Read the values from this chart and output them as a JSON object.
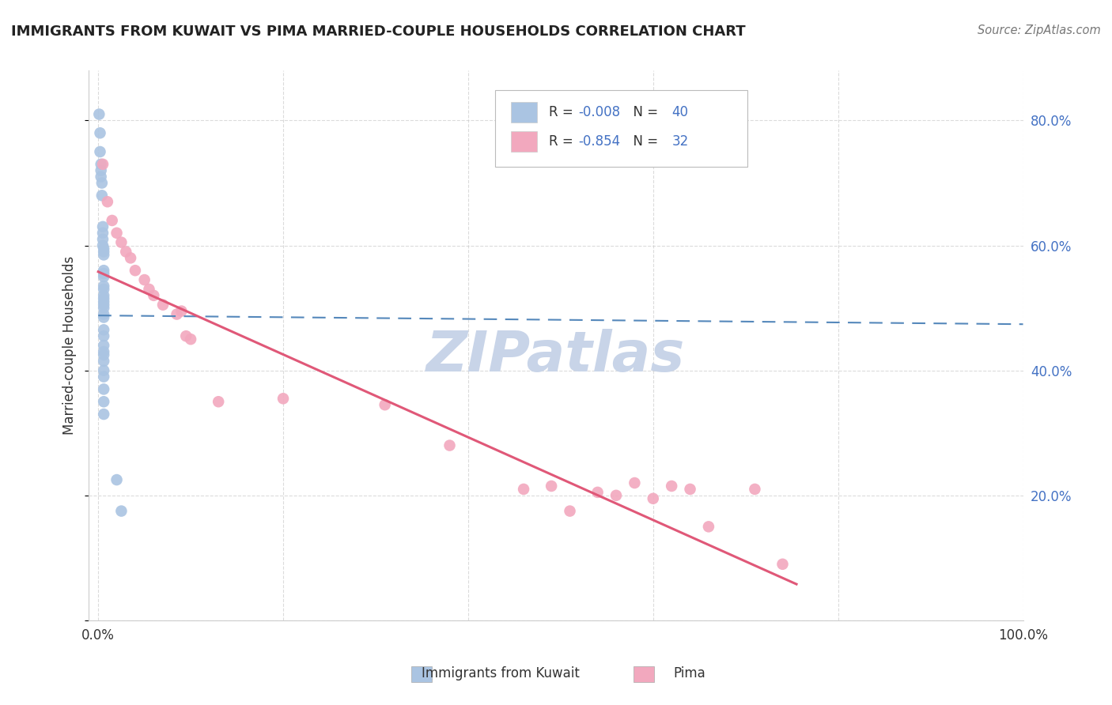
{
  "title": "IMMIGRANTS FROM KUWAIT VS PIMA MARRIED-COUPLE HOUSEHOLDS CORRELATION CHART",
  "source": "Source: ZipAtlas.com",
  "ylabel": "Married-couple Households",
  "blue_color": "#aac4e2",
  "pink_color": "#f2a8be",
  "blue_line_color": "#5588bb",
  "pink_line_color": "#e05878",
  "legend_text_blue": "#4472c4",
  "legend_text_black": "#333333",
  "watermark_color": "#c8d4e8",
  "grid_color": "#cccccc",
  "background_color": "#ffffff",
  "blue_scatter_x": [
    0.001,
    0.002,
    0.002,
    0.003,
    0.003,
    0.003,
    0.004,
    0.004,
    0.005,
    0.005,
    0.005,
    0.005,
    0.006,
    0.006,
    0.006,
    0.006,
    0.006,
    0.006,
    0.006,
    0.006,
    0.006,
    0.006,
    0.006,
    0.006,
    0.006,
    0.006,
    0.006,
    0.006,
    0.006,
    0.006,
    0.006,
    0.006,
    0.006,
    0.006,
    0.006,
    0.006,
    0.006,
    0.006,
    0.02,
    0.025
  ],
  "blue_scatter_y": [
    0.81,
    0.78,
    0.75,
    0.73,
    0.72,
    0.71,
    0.7,
    0.68,
    0.63,
    0.62,
    0.61,
    0.6,
    0.595,
    0.59,
    0.585,
    0.56,
    0.555,
    0.55,
    0.535,
    0.53,
    0.52,
    0.515,
    0.51,
    0.505,
    0.5,
    0.49,
    0.485,
    0.465,
    0.455,
    0.44,
    0.43,
    0.425,
    0.415,
    0.4,
    0.39,
    0.37,
    0.35,
    0.33,
    0.225,
    0.175
  ],
  "pink_scatter_x": [
    0.005,
    0.01,
    0.015,
    0.02,
    0.025,
    0.03,
    0.035,
    0.04,
    0.05,
    0.055,
    0.06,
    0.07,
    0.085,
    0.09,
    0.095,
    0.1,
    0.13,
    0.2,
    0.31,
    0.38,
    0.46,
    0.49,
    0.51,
    0.54,
    0.56,
    0.58,
    0.6,
    0.62,
    0.64,
    0.66,
    0.71,
    0.74
  ],
  "pink_scatter_y": [
    0.73,
    0.67,
    0.64,
    0.62,
    0.605,
    0.59,
    0.58,
    0.56,
    0.545,
    0.53,
    0.52,
    0.505,
    0.49,
    0.495,
    0.455,
    0.45,
    0.35,
    0.355,
    0.345,
    0.28,
    0.21,
    0.215,
    0.175,
    0.205,
    0.2,
    0.22,
    0.195,
    0.215,
    0.21,
    0.15,
    0.21,
    0.09
  ],
  "xlim": [
    -0.01,
    1.0
  ],
  "ylim": [
    0.0,
    0.88
  ],
  "blue_line_start_x": 0.0,
  "blue_line_end_x": 1.0,
  "blue_line_start_y": 0.488,
  "blue_line_end_y": 0.474,
  "pink_line_start_x": 0.0,
  "pink_line_end_x": 0.755,
  "pink_line_start_y": 0.558,
  "pink_line_end_y": 0.058
}
